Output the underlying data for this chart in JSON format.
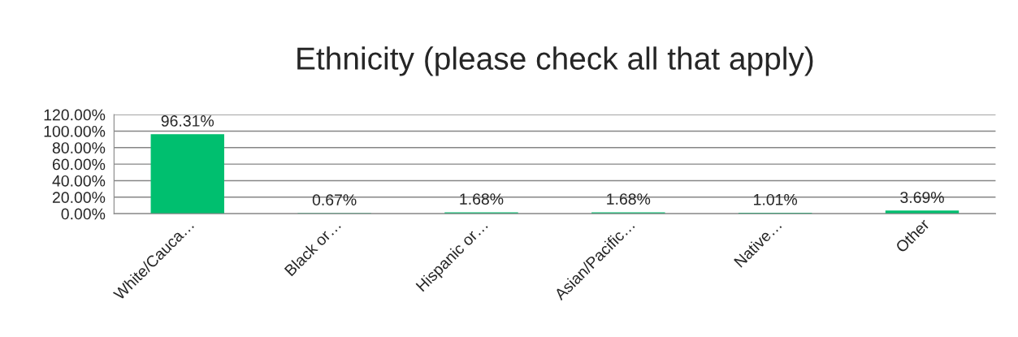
{
  "chart_data": {
    "type": "bar",
    "title": "Ethnicity (please check all that apply)",
    "categories": [
      "White/Cauca…",
      "Black or…",
      "Hispanic or…",
      "Asian/Pacific…",
      "Native…",
      "Other"
    ],
    "values": [
      96.31,
      0.67,
      1.68,
      1.68,
      1.01,
      3.69
    ],
    "value_labels": [
      "96.31%",
      "0.67%",
      "1.68%",
      "1.68%",
      "1.01%",
      "3.69%"
    ],
    "color": "#00bf6f",
    "ylim": [
      0,
      120
    ],
    "yticks": [
      {
        "value": 0,
        "label": "0.00%"
      },
      {
        "value": 20,
        "label": "20.00%"
      },
      {
        "value": 40,
        "label": "40.00%"
      },
      {
        "value": 60,
        "label": "60.00%"
      },
      {
        "value": 80,
        "label": "80.00%"
      },
      {
        "value": 100,
        "label": "100.00%"
      },
      {
        "value": 120,
        "label": "120.00%"
      }
    ],
    "grid": "y",
    "legend": false
  }
}
